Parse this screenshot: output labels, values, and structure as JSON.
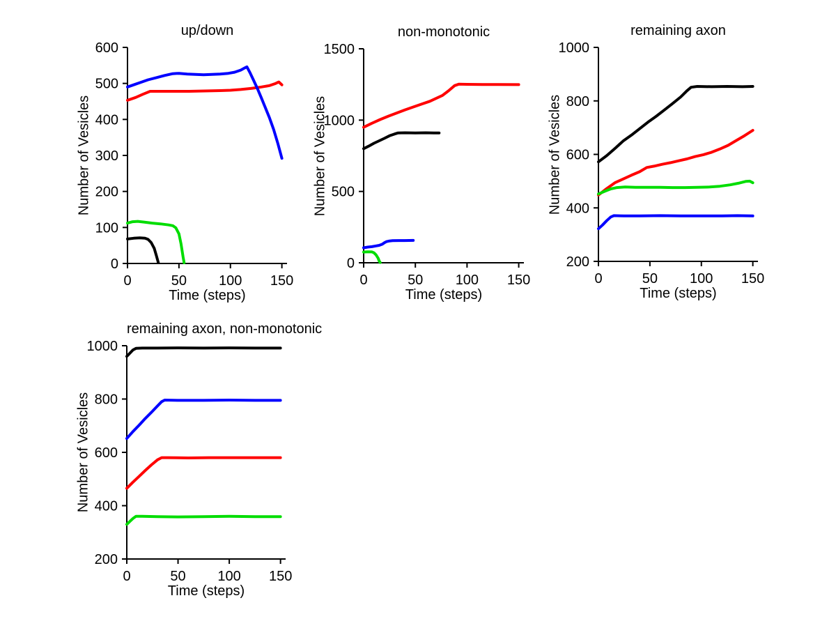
{
  "figure": {
    "background": "#ffffff",
    "text_color": "#000000"
  },
  "chart_data": [
    {
      "type": "line",
      "title": "up/down",
      "xlabel": "Time (steps)",
      "ylabel": "Number of Vesicles",
      "xlim": [
        0,
        155
      ],
      "ylim": [
        0,
        600
      ],
      "xticks": [
        0,
        50,
        100,
        150
      ],
      "yticks": [
        0,
        100,
        200,
        300,
        400,
        500,
        600
      ],
      "grid": false,
      "legend": "none",
      "series": [
        {
          "name": "black",
          "color": "#000000",
          "points": [
            [
              0,
              68
            ],
            [
              6,
              70
            ],
            [
              12,
              71
            ],
            [
              17,
              70
            ],
            [
              20,
              67
            ],
            [
              23,
              58
            ],
            [
              26,
              42
            ],
            [
              28,
              22
            ],
            [
              30,
              2
            ]
          ]
        },
        {
          "name": "red",
          "color": "#ff0000",
          "points": [
            [
              0,
              453
            ],
            [
              8,
              461
            ],
            [
              15,
              470
            ],
            [
              22,
              478
            ],
            [
              30,
              478
            ],
            [
              45,
              478
            ],
            [
              60,
              478
            ],
            [
              75,
              479
            ],
            [
              90,
              480
            ],
            [
              100,
              481
            ],
            [
              110,
              483
            ],
            [
              120,
              486
            ],
            [
              130,
              490
            ],
            [
              138,
              494
            ],
            [
              144,
              500
            ],
            [
              147,
              504
            ],
            [
              150,
              496
            ]
          ]
        },
        {
          "name": "green",
          "color": "#00dd00",
          "points": [
            [
              0,
              112
            ],
            [
              5,
              116
            ],
            [
              10,
              117
            ],
            [
              16,
              115
            ],
            [
              24,
              112
            ],
            [
              32,
              110
            ],
            [
              40,
              107
            ],
            [
              44,
              105
            ],
            [
              47,
              99
            ],
            [
              50,
              82
            ],
            [
              52,
              55
            ],
            [
              54,
              18
            ],
            [
              55,
              2
            ]
          ]
        },
        {
          "name": "blue",
          "color": "#0000ff",
          "points": [
            [
              0,
              490
            ],
            [
              6,
              496
            ],
            [
              12,
              502
            ],
            [
              20,
              510
            ],
            [
              28,
              516
            ],
            [
              36,
              522
            ],
            [
              44,
              527
            ],
            [
              50,
              528
            ],
            [
              58,
              526
            ],
            [
              66,
              525
            ],
            [
              74,
              524
            ],
            [
              82,
              525
            ],
            [
              90,
              526
            ],
            [
              98,
              528
            ],
            [
              104,
              531
            ],
            [
              110,
              537
            ],
            [
              114,
              543
            ],
            [
              116,
              546
            ],
            [
              119,
              530
            ],
            [
              122,
              512
            ],
            [
              126,
              487
            ],
            [
              130,
              460
            ],
            [
              134,
              432
            ],
            [
              138,
              404
            ],
            [
              142,
              372
            ],
            [
              146,
              334
            ],
            [
              150,
              292
            ]
          ]
        }
      ]
    },
    {
      "type": "line",
      "title": "non-monotonic",
      "xlabel": "Time (steps)",
      "ylabel": "Number of Vesicles",
      "xlim": [
        0,
        155
      ],
      "ylim": [
        0,
        1500
      ],
      "xticks": [
        0,
        50,
        100,
        150
      ],
      "yticks": [
        0,
        500,
        1000,
        1500
      ],
      "grid": false,
      "legend": "none",
      "series": [
        {
          "name": "black",
          "color": "#000000",
          "points": [
            [
              0,
              800
            ],
            [
              5,
              818
            ],
            [
              10,
              838
            ],
            [
              15,
              855
            ],
            [
              20,
              872
            ],
            [
              25,
              890
            ],
            [
              30,
              903
            ],
            [
              33,
              910
            ],
            [
              40,
              911
            ],
            [
              50,
              910
            ],
            [
              60,
              911
            ],
            [
              68,
              910
            ],
            [
              73,
              910
            ]
          ]
        },
        {
          "name": "red",
          "color": "#ff0000",
          "points": [
            [
              0,
              950
            ],
            [
              8,
              978
            ],
            [
              16,
              1004
            ],
            [
              24,
              1028
            ],
            [
              32,
              1050
            ],
            [
              40,
              1072
            ],
            [
              48,
              1092
            ],
            [
              56,
              1112
            ],
            [
              64,
              1132
            ],
            [
              70,
              1152
            ],
            [
              76,
              1172
            ],
            [
              82,
              1205
            ],
            [
              88,
              1242
            ],
            [
              92,
              1252
            ],
            [
              100,
              1251
            ],
            [
              115,
              1250
            ],
            [
              130,
              1250
            ],
            [
              150,
              1249
            ]
          ]
        },
        {
          "name": "green",
          "color": "#00dd00",
          "points": [
            [
              0,
              75
            ],
            [
              4,
              77
            ],
            [
              8,
              76
            ],
            [
              10,
              70
            ],
            [
              12,
              55
            ],
            [
              14,
              32
            ],
            [
              15,
              12
            ],
            [
              16,
              2
            ]
          ]
        },
        {
          "name": "blue",
          "color": "#0000ff",
          "points": [
            [
              0,
              105
            ],
            [
              4,
              110
            ],
            [
              8,
              113
            ],
            [
              12,
              118
            ],
            [
              15,
              122
            ],
            [
              18,
              130
            ],
            [
              20,
              140
            ],
            [
              22,
              148
            ],
            [
              25,
              153
            ],
            [
              28,
              155
            ],
            [
              34,
              156
            ],
            [
              40,
              156
            ],
            [
              48,
              157
            ]
          ]
        }
      ]
    },
    {
      "type": "line",
      "title": "remaining axon",
      "xlabel": "Time (steps)",
      "ylabel": "Number of Vesicles",
      "xlim": [
        0,
        155
      ],
      "ylim": [
        200,
        1000
      ],
      "xticks": [
        0,
        50,
        100,
        150
      ],
      "yticks": [
        200,
        400,
        600,
        800,
        1000
      ],
      "grid": false,
      "legend": "none",
      "series": [
        {
          "name": "black",
          "color": "#000000",
          "points": [
            [
              0,
              572
            ],
            [
              8,
              595
            ],
            [
              16,
              622
            ],
            [
              24,
              650
            ],
            [
              32,
              672
            ],
            [
              40,
              696
            ],
            [
              48,
              720
            ],
            [
              56,
              742
            ],
            [
              64,
              766
            ],
            [
              72,
              790
            ],
            [
              80,
              815
            ],
            [
              86,
              838
            ],
            [
              90,
              851
            ],
            [
              96,
              854
            ],
            [
              110,
              853
            ],
            [
              125,
              854
            ],
            [
              140,
              853
            ],
            [
              150,
              854
            ]
          ]
        },
        {
          "name": "red",
          "color": "#ff0000",
          "points": [
            [
              0,
              448
            ],
            [
              8,
              472
            ],
            [
              16,
              494
            ],
            [
              24,
              508
            ],
            [
              32,
              522
            ],
            [
              40,
              535
            ],
            [
              47,
              551
            ],
            [
              54,
              556
            ],
            [
              62,
              563
            ],
            [
              70,
              569
            ],
            [
              78,
              576
            ],
            [
              86,
              583
            ],
            [
              94,
              592
            ],
            [
              102,
              599
            ],
            [
              110,
              608
            ],
            [
              118,
              620
            ],
            [
              126,
              634
            ],
            [
              134,
              652
            ],
            [
              142,
              670
            ],
            [
              150,
              690
            ]
          ]
        },
        {
          "name": "green",
          "color": "#00dd00",
          "points": [
            [
              0,
              452
            ],
            [
              6,
              462
            ],
            [
              12,
              471
            ],
            [
              18,
              476
            ],
            [
              26,
              478
            ],
            [
              36,
              477
            ],
            [
              48,
              477
            ],
            [
              60,
              477
            ],
            [
              72,
              476
            ],
            [
              84,
              476
            ],
            [
              96,
              477
            ],
            [
              108,
              478
            ],
            [
              118,
              481
            ],
            [
              128,
              486
            ],
            [
              136,
              492
            ],
            [
              143,
              499
            ],
            [
              147,
              500
            ],
            [
              150,
              494
            ]
          ]
        },
        {
          "name": "blue",
          "color": "#0000ff",
          "points": [
            [
              0,
              322
            ],
            [
              4,
              336
            ],
            [
              8,
              352
            ],
            [
              12,
              366
            ],
            [
              15,
              371
            ],
            [
              25,
              370
            ],
            [
              40,
              370
            ],
            [
              60,
              371
            ],
            [
              80,
              370
            ],
            [
              100,
              370
            ],
            [
              120,
              370
            ],
            [
              135,
              371
            ],
            [
              150,
              370
            ]
          ]
        }
      ]
    },
    {
      "type": "line",
      "title": "remaining axon, non-monotonic",
      "xlabel": "Time (steps)",
      "ylabel": "Number of Vesicles",
      "xlim": [
        0,
        155
      ],
      "ylim": [
        200,
        1000
      ],
      "xticks": [
        0,
        50,
        100,
        150
      ],
      "yticks": [
        200,
        400,
        600,
        800,
        1000
      ],
      "grid": false,
      "legend": "none",
      "series": [
        {
          "name": "black",
          "color": "#000000",
          "points": [
            [
              0,
              960
            ],
            [
              3,
              972
            ],
            [
              6,
              984
            ],
            [
              9,
              990
            ],
            [
              15,
              991
            ],
            [
              30,
              991
            ],
            [
              50,
              992
            ],
            [
              75,
              991
            ],
            [
              100,
              992
            ],
            [
              125,
              991
            ],
            [
              150,
              991
            ]
          ]
        },
        {
          "name": "red",
          "color": "#ff0000",
          "points": [
            [
              0,
              465
            ],
            [
              6,
              488
            ],
            [
              12,
              510
            ],
            [
              18,
              532
            ],
            [
              24,
              553
            ],
            [
              30,
              572
            ],
            [
              34,
              580
            ],
            [
              40,
              580
            ],
            [
              60,
              579
            ],
            [
              80,
              580
            ],
            [
              100,
              580
            ],
            [
              125,
              580
            ],
            [
              150,
              580
            ]
          ]
        },
        {
          "name": "green",
          "color": "#00dd00",
          "points": [
            [
              0,
              330
            ],
            [
              3,
              341
            ],
            [
              6,
              352
            ],
            [
              9,
              360
            ],
            [
              15,
              360
            ],
            [
              30,
              359
            ],
            [
              50,
              358
            ],
            [
              75,
              359
            ],
            [
              100,
              360
            ],
            [
              125,
              359
            ],
            [
              150,
              359
            ]
          ]
        },
        {
          "name": "blue",
          "color": "#0000ff",
          "points": [
            [
              0,
              652
            ],
            [
              6,
              678
            ],
            [
              12,
              702
            ],
            [
              18,
              727
            ],
            [
              24,
              750
            ],
            [
              30,
              774
            ],
            [
              34,
              790
            ],
            [
              37,
              796
            ],
            [
              50,
              795
            ],
            [
              75,
              795
            ],
            [
              100,
              796
            ],
            [
              125,
              795
            ],
            [
              150,
              795
            ]
          ]
        }
      ]
    }
  ]
}
